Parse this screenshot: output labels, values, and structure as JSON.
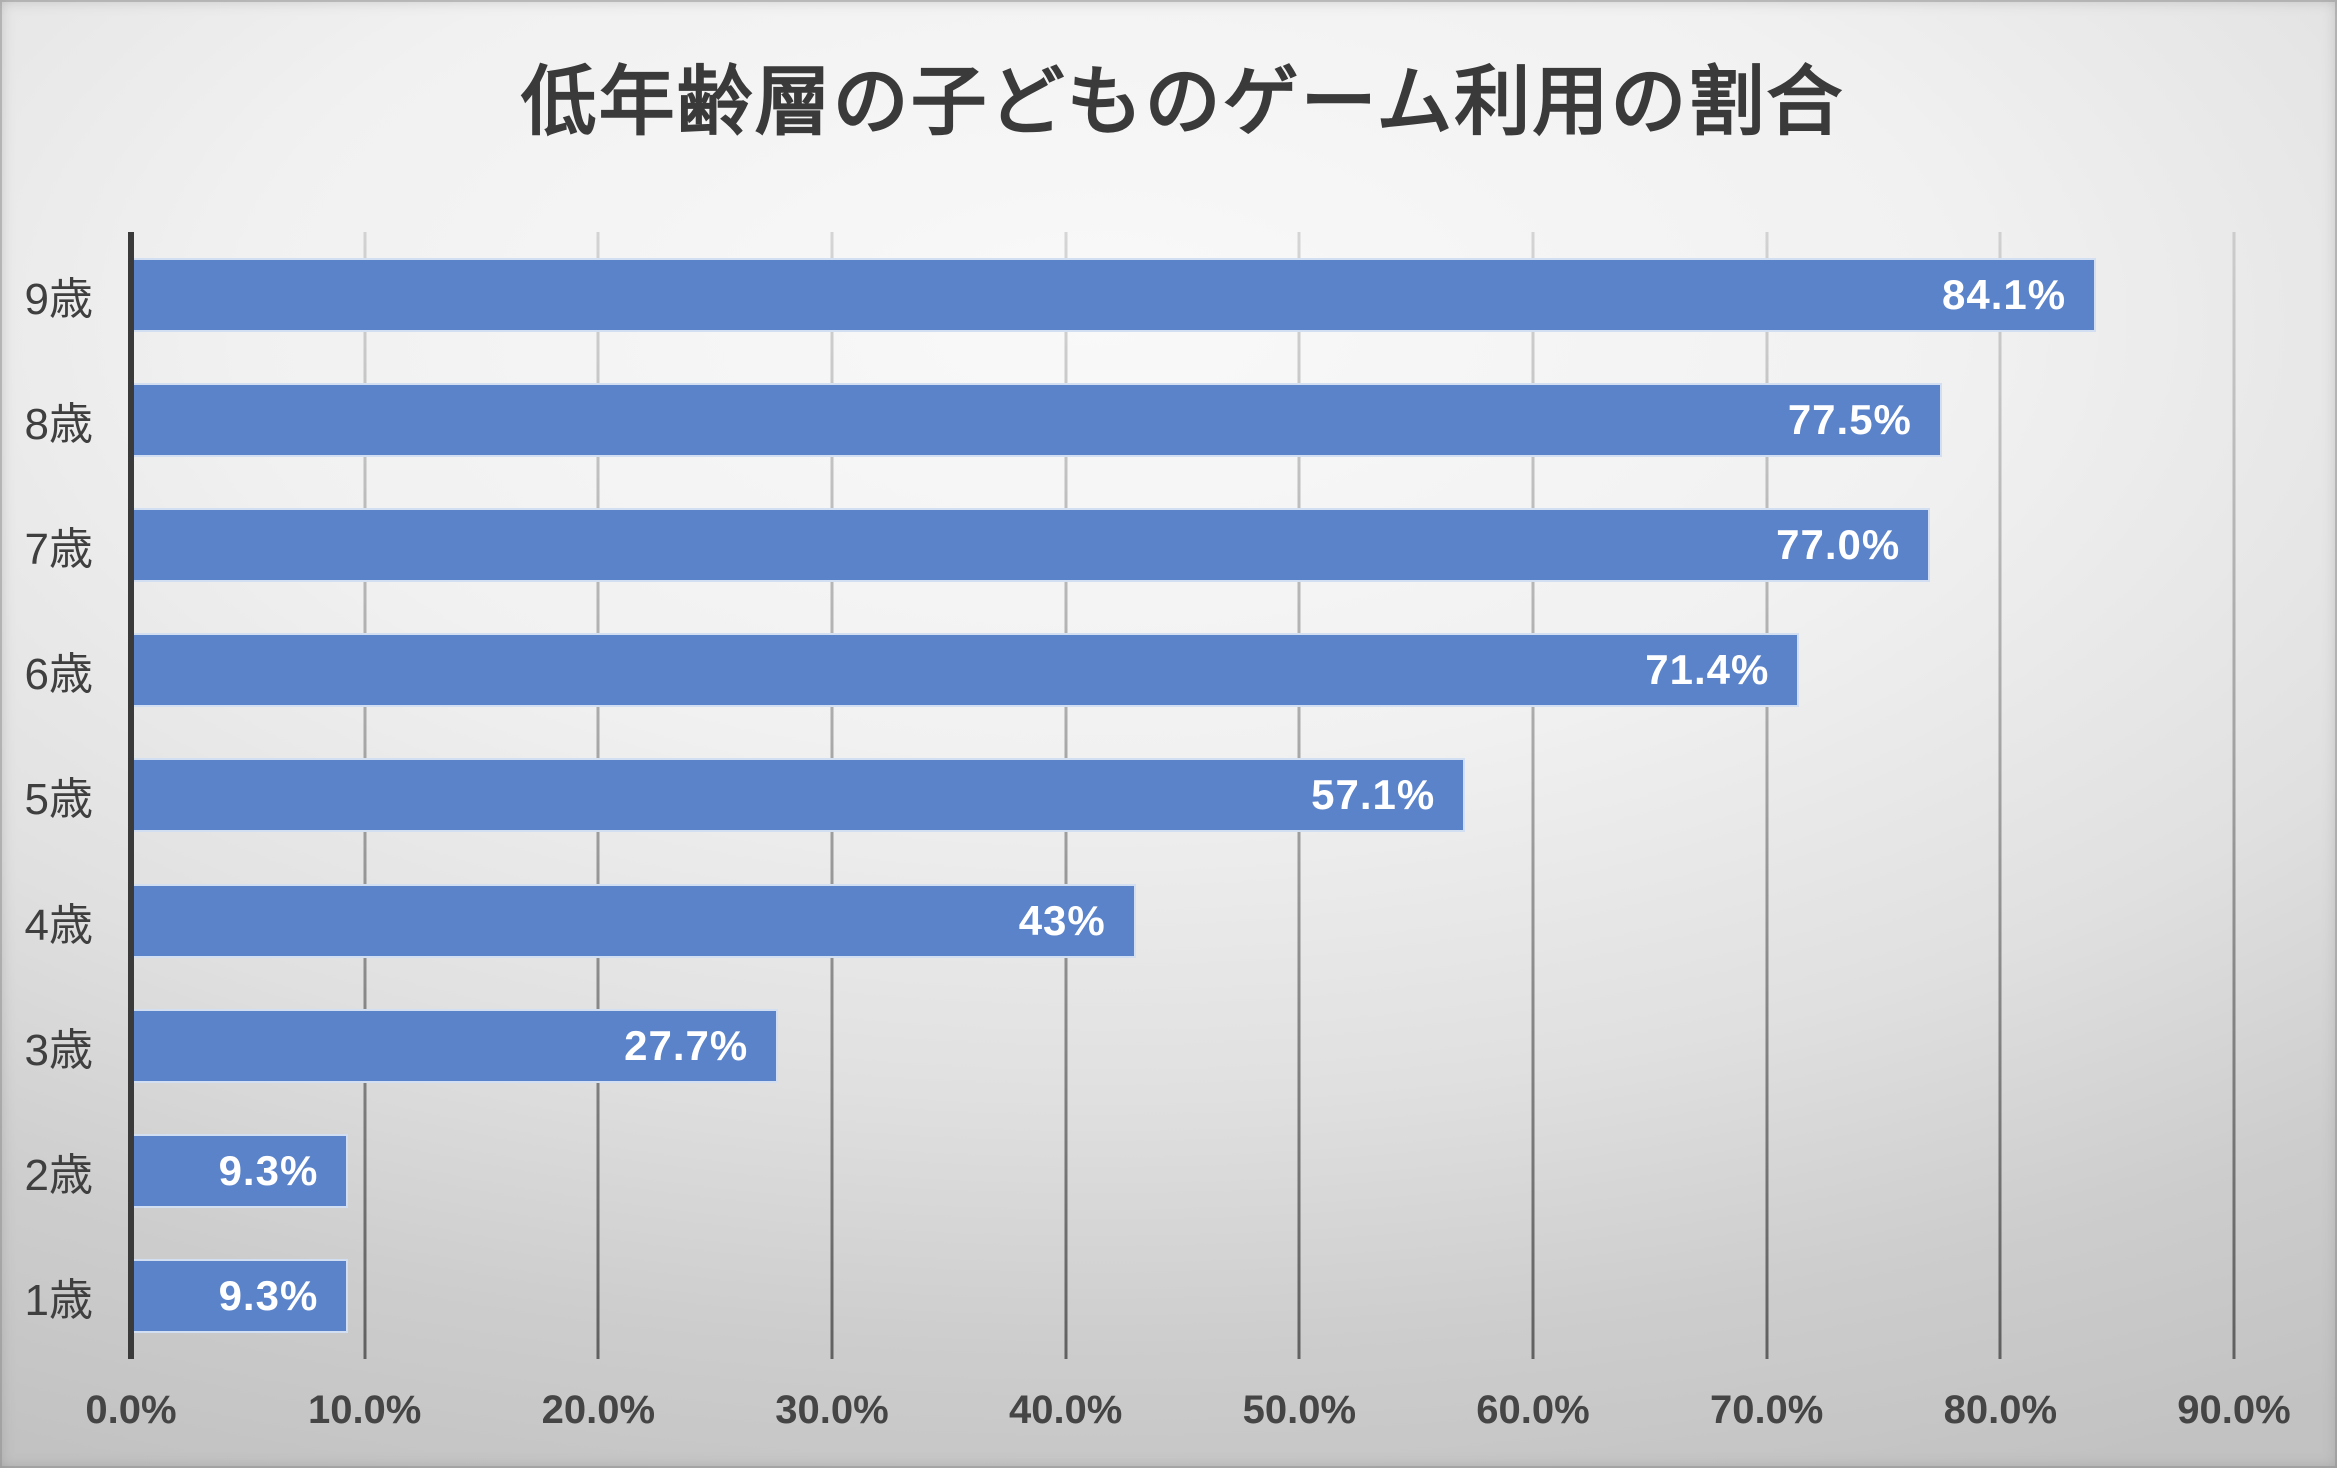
{
  "chart_data": {
    "type": "bar",
    "orientation": "horizontal",
    "title": "低年齢層の子どものゲーム利用の割合",
    "categories": [
      "9歳",
      "8歳",
      "7歳",
      "6歳",
      "5歳",
      "4歳",
      "3歳",
      "2歳",
      "1歳"
    ],
    "values": [
      84.1,
      77.5,
      77.0,
      71.4,
      57.1,
      43,
      27.7,
      9.3,
      9.3
    ],
    "value_labels": [
      "84.1%",
      "77.5%",
      "77.0%",
      "71.4%",
      "57.1%",
      "43%",
      "27.7%",
      "9.3%",
      "9.3%"
    ],
    "xlabel": "",
    "ylabel": "",
    "xlim": [
      0,
      90
    ],
    "x_tick_values": [
      0,
      10,
      20,
      30,
      40,
      50,
      60,
      70,
      80,
      90
    ],
    "x_tick_labels": [
      "0.0%",
      "10.0%",
      "20.0%",
      "30.0%",
      "40.0%",
      "50.0%",
      "60.0%",
      "70.0%",
      "80.0%",
      "90.0%"
    ],
    "grid": true,
    "legend": false,
    "colors": {
      "bar_fill": "#5B83CA",
      "bar_border": "#EAEFF8",
      "value_label": "#FFFFFF",
      "gridline": "#9B9B9B",
      "axis_line": "#3A3A3A",
      "title_text": "#3A3A3A",
      "tick_text": "#454545",
      "category_text": "#3F3F3F"
    }
  }
}
